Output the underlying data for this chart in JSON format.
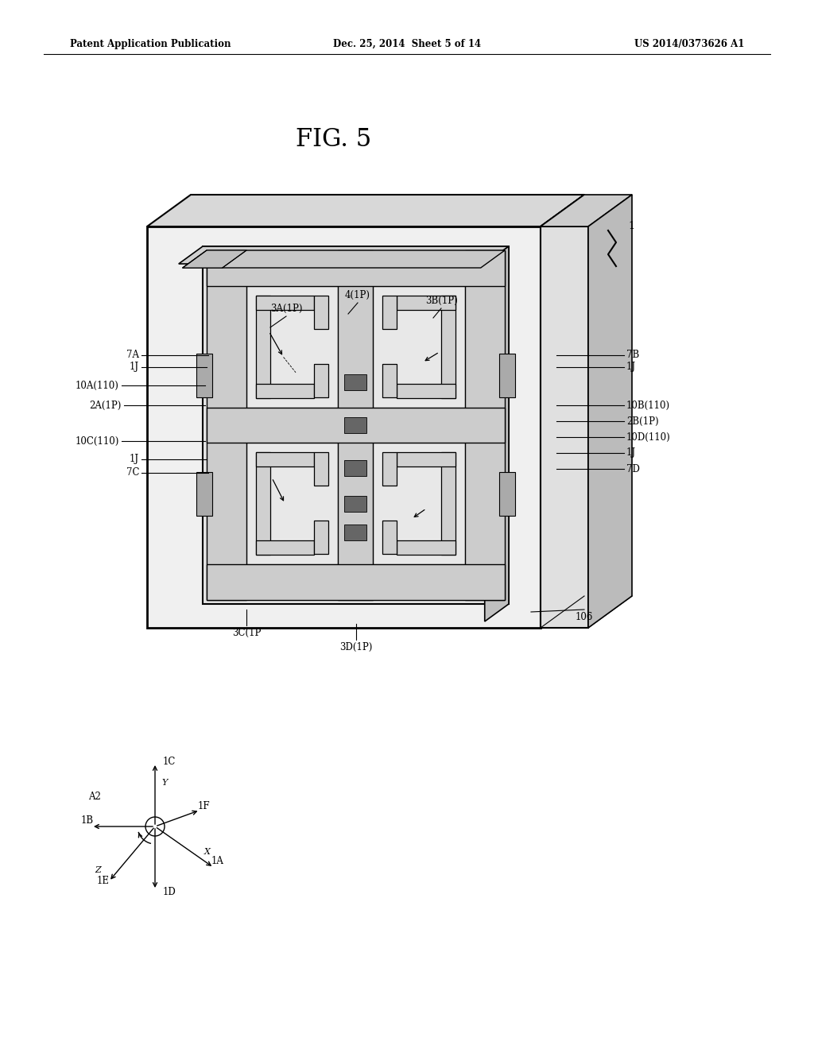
{
  "bg_color": "#ffffff",
  "header_left": "Patent Application Publication",
  "header_center": "Dec. 25, 2014  Sheet 5 of 14",
  "header_right": "US 2014/0373626 A1",
  "fig_title": "FIG. 5"
}
